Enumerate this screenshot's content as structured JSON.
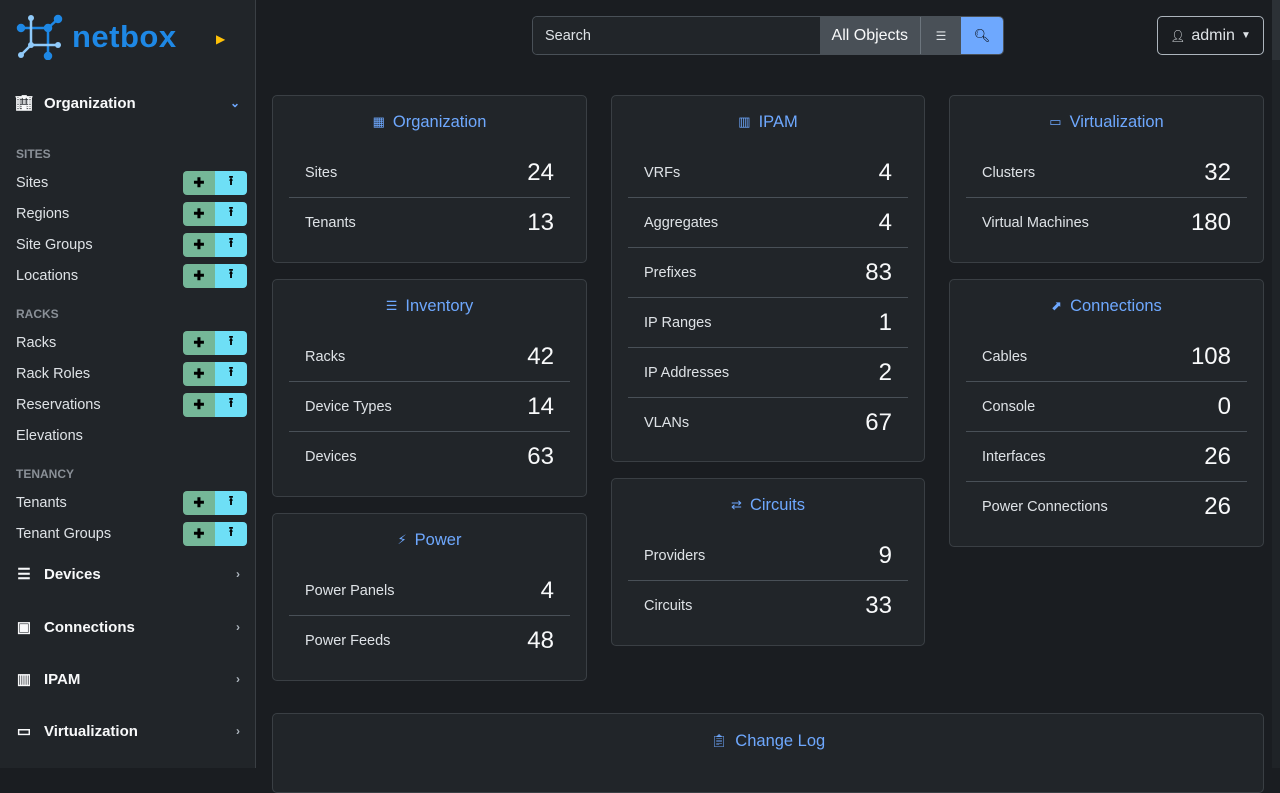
{
  "brand": "netbox",
  "sidebar": {
    "organization": "Organization",
    "groups": {
      "sites": "SITES",
      "racks": "RACKS",
      "tenancy": "TENANCY"
    },
    "items": [
      "Sites",
      "Regions",
      "Site Groups",
      "Locations",
      "Racks",
      "Rack Roles",
      "Reservations",
      "Elevations",
      "Tenants",
      "Tenant Groups"
    ],
    "sections": [
      "Devices",
      "Connections",
      "IPAM",
      "Virtualization"
    ]
  },
  "search": {
    "placeholder": "Search",
    "scope": "All Objects"
  },
  "user": "admin",
  "cards": {
    "organization": {
      "title": "Organization",
      "rows": [
        {
          "label": "Sites",
          "count": "24"
        },
        {
          "label": "Tenants",
          "count": "13"
        }
      ]
    },
    "inventory": {
      "title": "Inventory",
      "rows": [
        {
          "label": "Racks",
          "count": "42"
        },
        {
          "label": "Device Types",
          "count": "14"
        },
        {
          "label": "Devices",
          "count": "63"
        }
      ]
    },
    "power": {
      "title": "Power",
      "rows": [
        {
          "label": "Power Panels",
          "count": "4"
        },
        {
          "label": "Power Feeds",
          "count": "48"
        }
      ]
    },
    "ipam": {
      "title": "IPAM",
      "rows": [
        {
          "label": "VRFs",
          "count": "4"
        },
        {
          "label": "Aggregates",
          "count": "4"
        },
        {
          "label": "Prefixes",
          "count": "83"
        },
        {
          "label": "IP Ranges",
          "count": "1"
        },
        {
          "label": "IP Addresses",
          "count": "2"
        },
        {
          "label": "VLANs",
          "count": "67"
        }
      ]
    },
    "circuits": {
      "title": "Circuits",
      "rows": [
        {
          "label": "Providers",
          "count": "9"
        },
        {
          "label": "Circuits",
          "count": "33"
        }
      ]
    },
    "virtualization": {
      "title": "Virtualization",
      "rows": [
        {
          "label": "Clusters",
          "count": "32"
        },
        {
          "label": "Virtual Machines",
          "count": "180"
        }
      ]
    },
    "connections": {
      "title": "Connections",
      "rows": [
        {
          "label": "Cables",
          "count": "108"
        },
        {
          "label": "Console",
          "count": "0"
        },
        {
          "label": "Interfaces",
          "count": "26"
        },
        {
          "label": "Power Connections",
          "count": "26"
        }
      ]
    },
    "changelog": {
      "title": "Change Log"
    }
  },
  "colors": {
    "accent": "#6ea8fe",
    "brand": "#1e88e5",
    "add": "#75b798",
    "import": "#6edff6"
  }
}
